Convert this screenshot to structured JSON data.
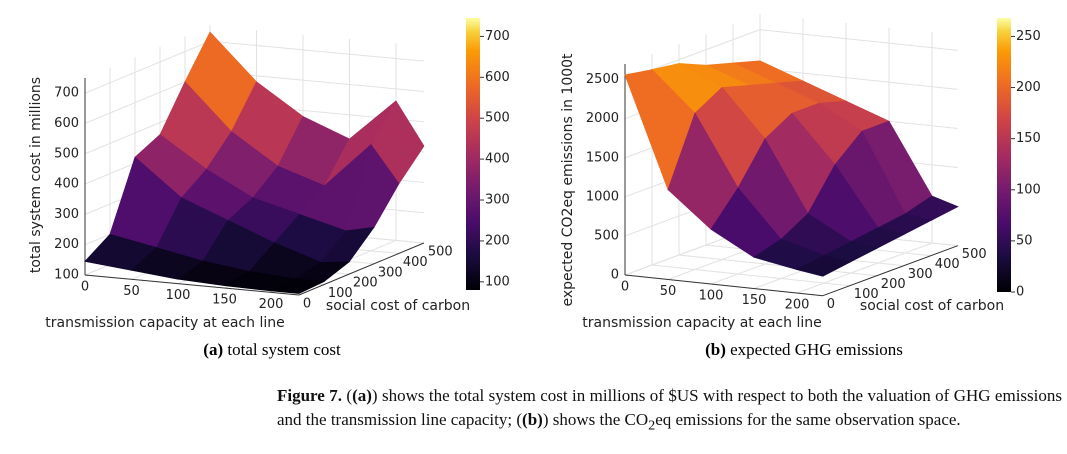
{
  "chart_data": [
    {
      "type": "surface",
      "colormap": "inferno",
      "xlabel": "transmission capacity at each line",
      "ylabel": "social cost of carbon",
      "zlabel": "total system cost in millions",
      "x": [
        0,
        50,
        100,
        150,
        200,
        230
      ],
      "y": [
        0,
        100,
        200,
        300,
        400,
        500
      ],
      "z": [
        [
          145,
          130,
          115,
          108,
          105,
          105
        ],
        [
          200,
          170,
          140,
          120,
          110,
          110
        ],
        [
          420,
          300,
          240,
          180,
          130,
          140
        ],
        [
          460,
          360,
          280,
          240,
          200,
          220
        ],
        [
          600,
          450,
          350,
          300,
          450,
          330
        ],
        [
          730,
          580,
          480,
          420,
          560,
          420
        ]
      ],
      "xlim": [
        0,
        230
      ],
      "xticks": [
        0,
        50,
        100,
        150,
        200
      ],
      "ylim": [
        0,
        500
      ],
      "yticks": [
        0,
        100,
        200,
        300,
        400,
        500
      ],
      "zlim": [
        100,
        750
      ],
      "zticks": [
        100,
        200,
        300,
        400,
        500,
        600,
        700
      ],
      "clim": [
        80,
        745
      ],
      "cticks": [
        100,
        200,
        300,
        400,
        500,
        600,
        700
      ],
      "grid": true,
      "subcaption": {
        "label": "(a)",
        "text": "total system cost"
      }
    },
    {
      "type": "surface",
      "colormap": "inferno",
      "xlabel": "transmission capacity at each line",
      "ylabel": "social cost of carbon",
      "zlabel": "expected CO2eq emissions in 1000t",
      "x": [
        0,
        50,
        100,
        150,
        200,
        230
      ],
      "y": [
        0,
        100,
        200,
        300,
        400,
        500
      ],
      "z": [
        [
          2560,
          1150,
          700,
          400,
          300,
          250
        ],
        [
          2500,
          2000,
          1100,
          500,
          350,
          300
        ],
        [
          2450,
          2200,
          1600,
          700,
          400,
          350
        ],
        [
          2300,
          2100,
          1800,
          1200,
          450,
          400
        ],
        [
          2200,
          2000,
          1800,
          1500,
          500,
          450
        ],
        [
          2100,
          1900,
          1700,
          1500,
          600,
          500
        ]
      ],
      "xlim": [
        0,
        230
      ],
      "xticks": [
        0,
        50,
        100,
        150,
        200
      ],
      "ylim": [
        0,
        500
      ],
      "yticks": [
        0,
        100,
        200,
        300,
        400,
        500
      ],
      "zlim": [
        0,
        2700
      ],
      "zticks": [
        0,
        500,
        1000,
        1500,
        2000,
        2500
      ],
      "clim": [
        0,
        268
      ],
      "cticks": [
        0,
        50,
        100,
        150,
        200,
        250
      ],
      "grid": true,
      "subcaption": {
        "label": "(b)",
        "text": "expected GHG emissions"
      }
    }
  ],
  "caption": {
    "label": "Figure 7.",
    "a": "(a)",
    "text_a": "shows the total system cost in millions of $US with respect to both the valuation of GHG emissions and the transmission line capacity;",
    "b": "(b)",
    "text_b": "shows the CO",
    "sub": "2",
    "text_end": "eq emissions for the same observation space."
  }
}
